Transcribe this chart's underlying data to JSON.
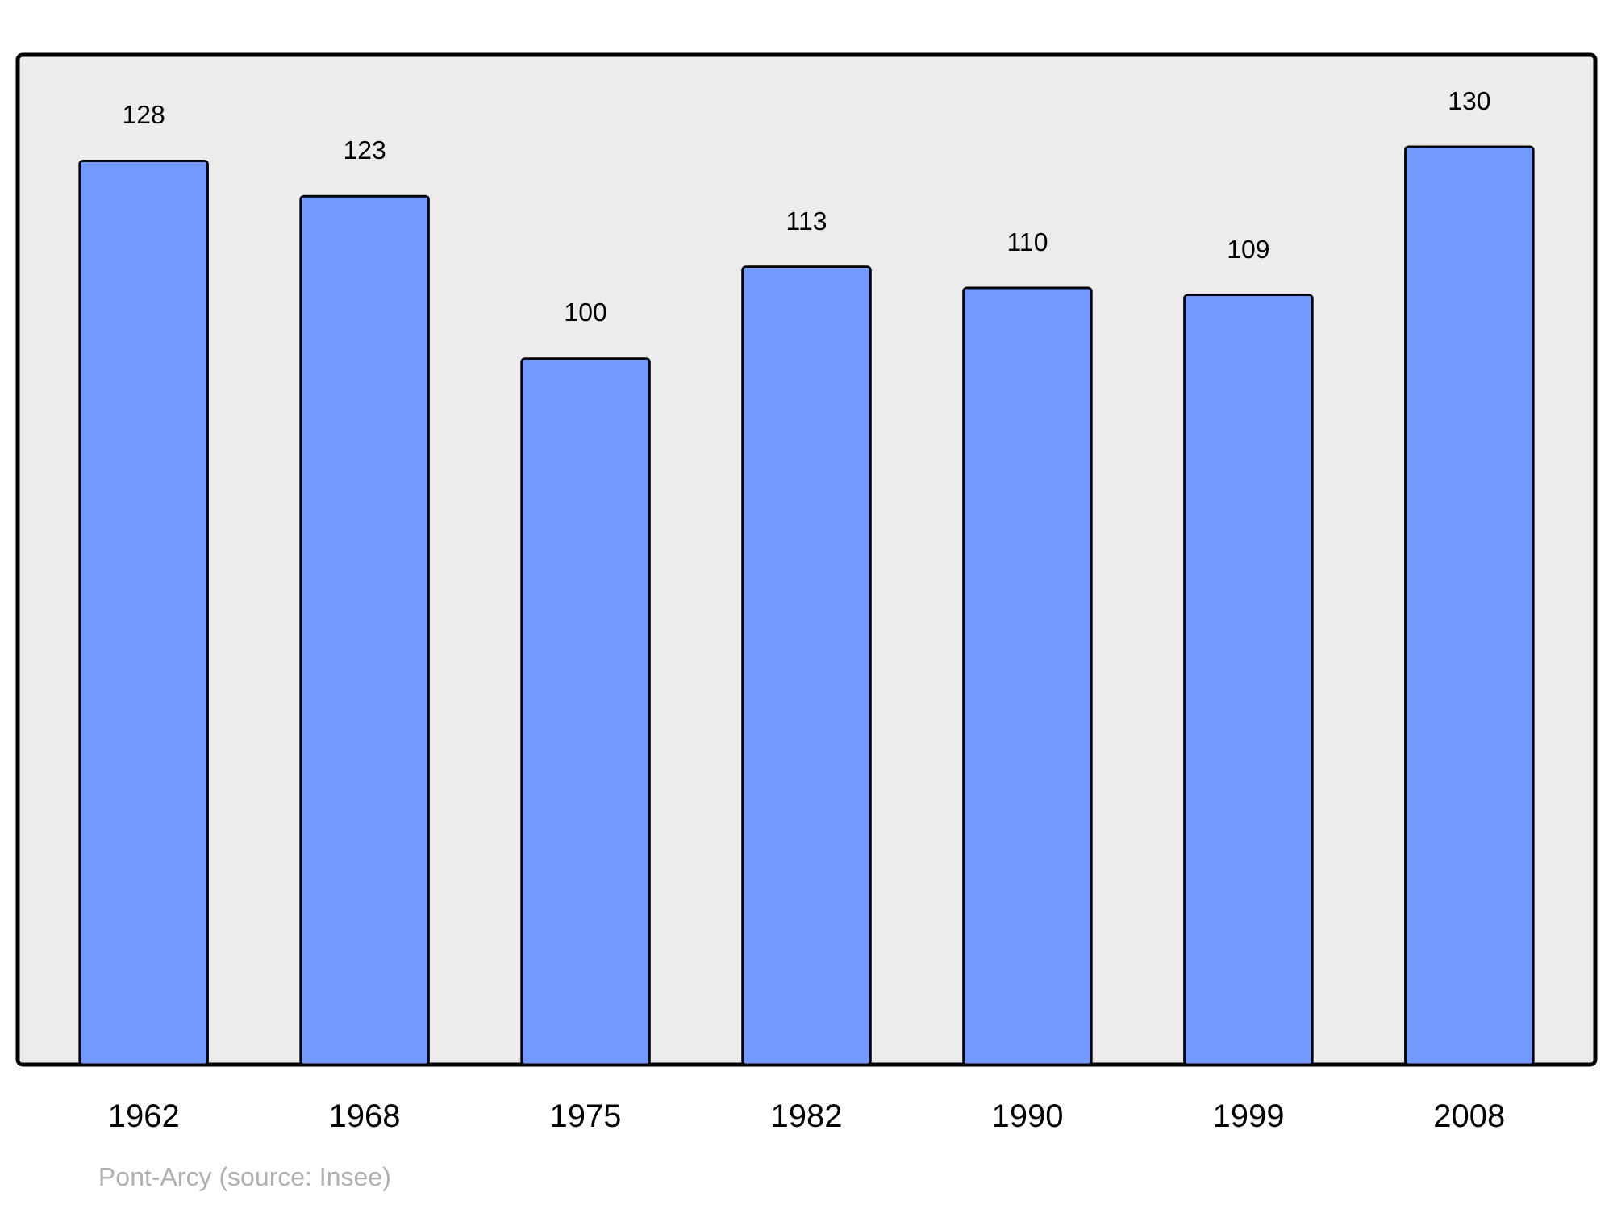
{
  "chart_data": {
    "type": "bar",
    "categories": [
      "1962",
      "1968",
      "1975",
      "1982",
      "1990",
      "1999",
      "2008"
    ],
    "values": [
      128,
      123,
      100,
      113,
      110,
      109,
      130
    ],
    "color": "#7399ff",
    "ylim": [
      0,
      143
    ],
    "data_labels": true,
    "annotations": [
      "Pont-Arcy    (source: Insee)"
    ]
  }
}
